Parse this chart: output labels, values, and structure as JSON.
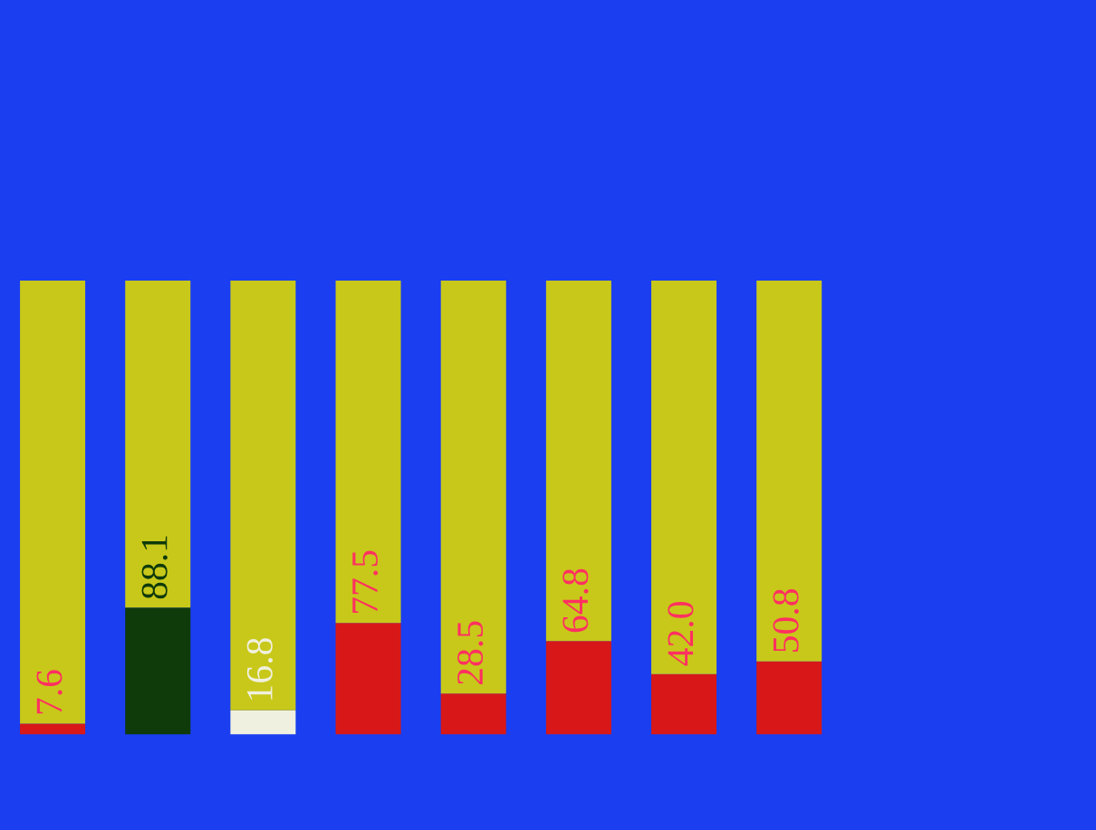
{
  "chart_data": {
    "type": "bar",
    "stacked": true,
    "categories": [
      null,
      null,
      null,
      null,
      null,
      null,
      null,
      null
    ],
    "series": [
      {
        "colors": [
          "#d81818",
          "#0f3a0a",
          "#f0f0e0",
          "#d81818",
          "#d81818",
          "#d81818",
          "#d81818",
          "#d81818"
        ],
        "values": [
          7.6,
          88.1,
          16.8,
          77.5,
          28.5,
          64.8,
          42.0,
          50.8
        ],
        "value_labels": [
          "7.6",
          "88.1",
          "16.8",
          "77.5",
          "28.5",
          "64.8",
          "42.0",
          "50.8"
        ]
      },
      {
        "color": "#c8c81a",
        "values": [
          307.4,
          226.9,
          298.2,
          237.5,
          286.5,
          250.2,
          273.0,
          264.2
        ]
      }
    ],
    "ylim": [
      0,
      315
    ]
  }
}
